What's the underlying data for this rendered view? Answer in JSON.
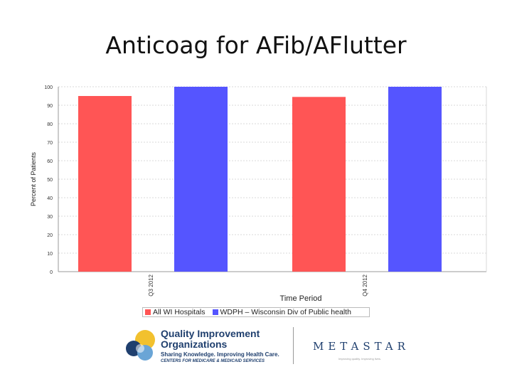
{
  "slide": {
    "title": "Anticoag for AFib/AFlutter"
  },
  "colors": {
    "series_1": "#ff5555",
    "series_2": "#5555ff",
    "grid": "#d8d8d8",
    "axis": "#999999"
  },
  "chart_data": {
    "type": "bar",
    "categories": [
      "Q3 2012",
      "Q4 2012"
    ],
    "series": [
      {
        "name": "All WI Hospitals",
        "values": [
          95,
          94.5
        ]
      },
      {
        "name": "WDPH – Wisconsin Div of Public health",
        "values": [
          100,
          100
        ]
      }
    ],
    "xlabel": "Time Period",
    "ylabel": "Percent of Patients",
    "ylim": [
      0,
      100
    ],
    "yticks": [
      "0",
      "10",
      "20",
      "30",
      "40",
      "50",
      "60",
      "70",
      "80",
      "90",
      "100"
    ],
    "xtick_labels": [
      "Q3 2012",
      "Q4 2012"
    ],
    "grid": true,
    "legend_position": "bottom"
  },
  "footer": {
    "qio_line1": "Quality Improvement",
    "qio_line2": "Organizations",
    "qio_tagline": "Sharing Knowledge. Improving Health Care.",
    "qio_sub": "CENTERS FOR MEDICARE & MEDICAID SERVICES",
    "metastar": "METASTAR",
    "metastar_tag": "Improving quality. Improving lives."
  }
}
